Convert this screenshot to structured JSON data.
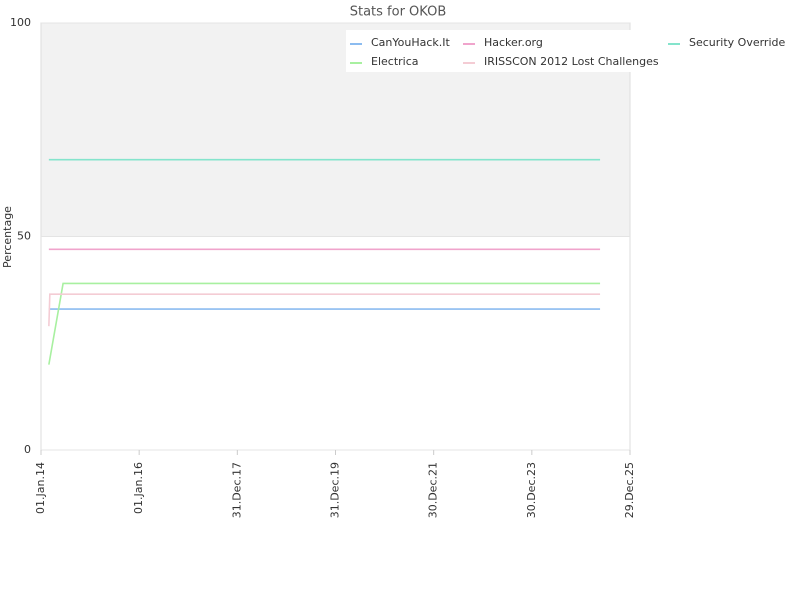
{
  "chart_data": {
    "type": "line",
    "title": "Stats for OKOB",
    "y_label": "Percentage",
    "xlim": [
      2014.0,
      2026.0
    ],
    "xticks": [
      {
        "value": 2014.0,
        "label": "01.Jan.14"
      },
      {
        "value": 2016.0,
        "label": "01.Jan.16"
      },
      {
        "value": 2018.0,
        "label": "31.Dec.17"
      },
      {
        "value": 2020.0,
        "label": "31.Dec.19"
      },
      {
        "value": 2022.0,
        "label": "30.Dec.21"
      },
      {
        "value": 2024.0,
        "label": "30.Dec.23"
      },
      {
        "value": 2026.0,
        "label": "29.Dec.25"
      }
    ],
    "ylim": [
      0,
      100
    ],
    "yticks": [
      0,
      50,
      100
    ],
    "alternate_bands": true,
    "series": [
      {
        "name": "CanYouHack.It",
        "color": "#8cbcf0",
        "x": [
          2014.16,
          2025.39
        ],
        "values": [
          33,
          33
        ]
      },
      {
        "name": "Hacker.org",
        "color": "#f0a4cc",
        "x": [
          2014.16,
          2025.39
        ],
        "values": [
          47,
          47
        ]
      },
      {
        "name": "Security Override",
        "color": "#84e4cc",
        "x": [
          2014.16,
          2025.39
        ],
        "values": [
          68,
          68
        ]
      },
      {
        "name": "Electrica",
        "color": "#a8f0a0",
        "x": [
          2014.16,
          2014.45,
          2025.39
        ],
        "values": [
          20,
          39,
          39
        ]
      },
      {
        "name": "IRISSCON 2012 Lost Challenges",
        "color": "#f4ccd4",
        "x": [
          2014.16,
          2014.18,
          2025.39
        ],
        "values": [
          29,
          36.5,
          36.5
        ]
      }
    ]
  }
}
